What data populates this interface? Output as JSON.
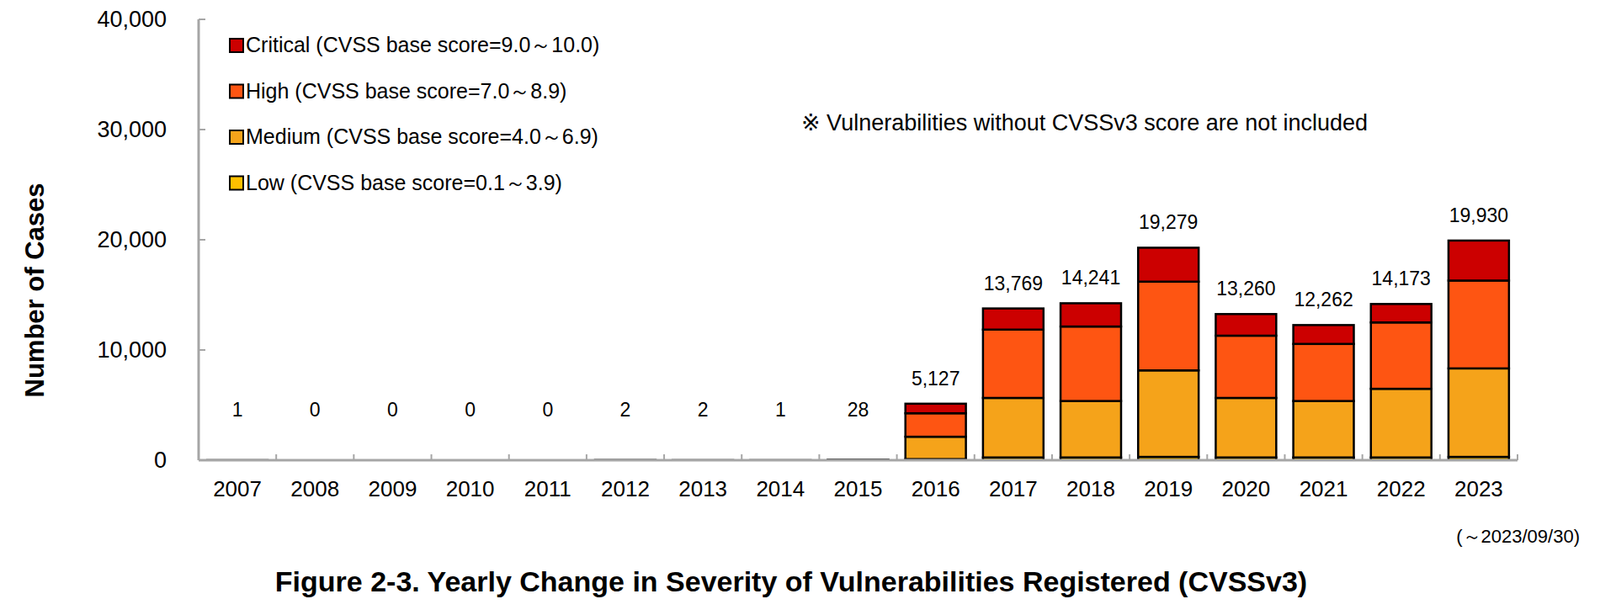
{
  "chart_data": {
    "type": "bar",
    "stacked": true,
    "title": "Figure 2-3. Yearly Change in Severity of Vulnerabilities Registered (CVSSv3)",
    "y_label": "Number of Cases",
    "annotations": [
      "※ Vulnerabilities without CVSSv3 score are not included",
      "(～2023/09/30)"
    ],
    "legend": "top-left",
    "grid": false,
    "categories": [
      "2007",
      "2008",
      "2009",
      "2010",
      "2011",
      "2012",
      "2013",
      "2014",
      "2015",
      "2016",
      "2017",
      "2018",
      "2019",
      "2020",
      "2021",
      "2022",
      "2023"
    ],
    "series": [
      {
        "name": "Low (CVSS base score=0.1～3.9)",
        "color": "#ffc000",
        "values": [
          0,
          0,
          0,
          0,
          0,
          0,
          0,
          0,
          0,
          100,
          250,
          250,
          300,
          250,
          250,
          250,
          300
        ]
      },
      {
        "name": "Medium (CVSS base score=4.0～6.9)",
        "color": "#f5a31a",
        "values": [
          1,
          0,
          0,
          0,
          0,
          1,
          2,
          0,
          14,
          2030,
          5400,
          5120,
          7850,
          5400,
          5120,
          6230,
          8030
        ]
      },
      {
        "name": "High (CVSS base score=7.0～8.9)",
        "color": "#fe5512",
        "values": [
          0,
          0,
          0,
          0,
          0,
          1,
          0,
          1,
          10,
          2130,
          6200,
          6760,
          8050,
          5650,
          5180,
          6020,
          7970
        ]
      },
      {
        "name": "Critical (CVSS base score=9.0～10.0)",
        "color": "#cc0000",
        "values": [
          0,
          0,
          0,
          0,
          0,
          0,
          0,
          0,
          4,
          867,
          1919,
          2111,
          3079,
          1960,
          1712,
          1673,
          3630
        ]
      }
    ],
    "totals": [
      1,
      0,
      0,
      0,
      0,
      2,
      2,
      1,
      28,
      5127,
      13769,
      14241,
      19279,
      13260,
      12262,
      14173,
      19930
    ],
    "total_labels": [
      "1",
      "0",
      "0",
      "0",
      "0",
      "2",
      "2",
      "1",
      "28",
      "5,127",
      "13,769",
      "14,241",
      "19,279",
      "13,260",
      "12,262",
      "14,173",
      "19,930"
    ],
    "ylim": [
      0,
      40000
    ],
    "yticks": [
      0,
      {
        "value": 10000,
        "label": "10,000"
      },
      {
        "value": 20000,
        "label": "20,000"
      },
      {
        "value": 30000,
        "label": "30,000"
      },
      {
        "value": 40000,
        "label": "40,000"
      }
    ]
  }
}
